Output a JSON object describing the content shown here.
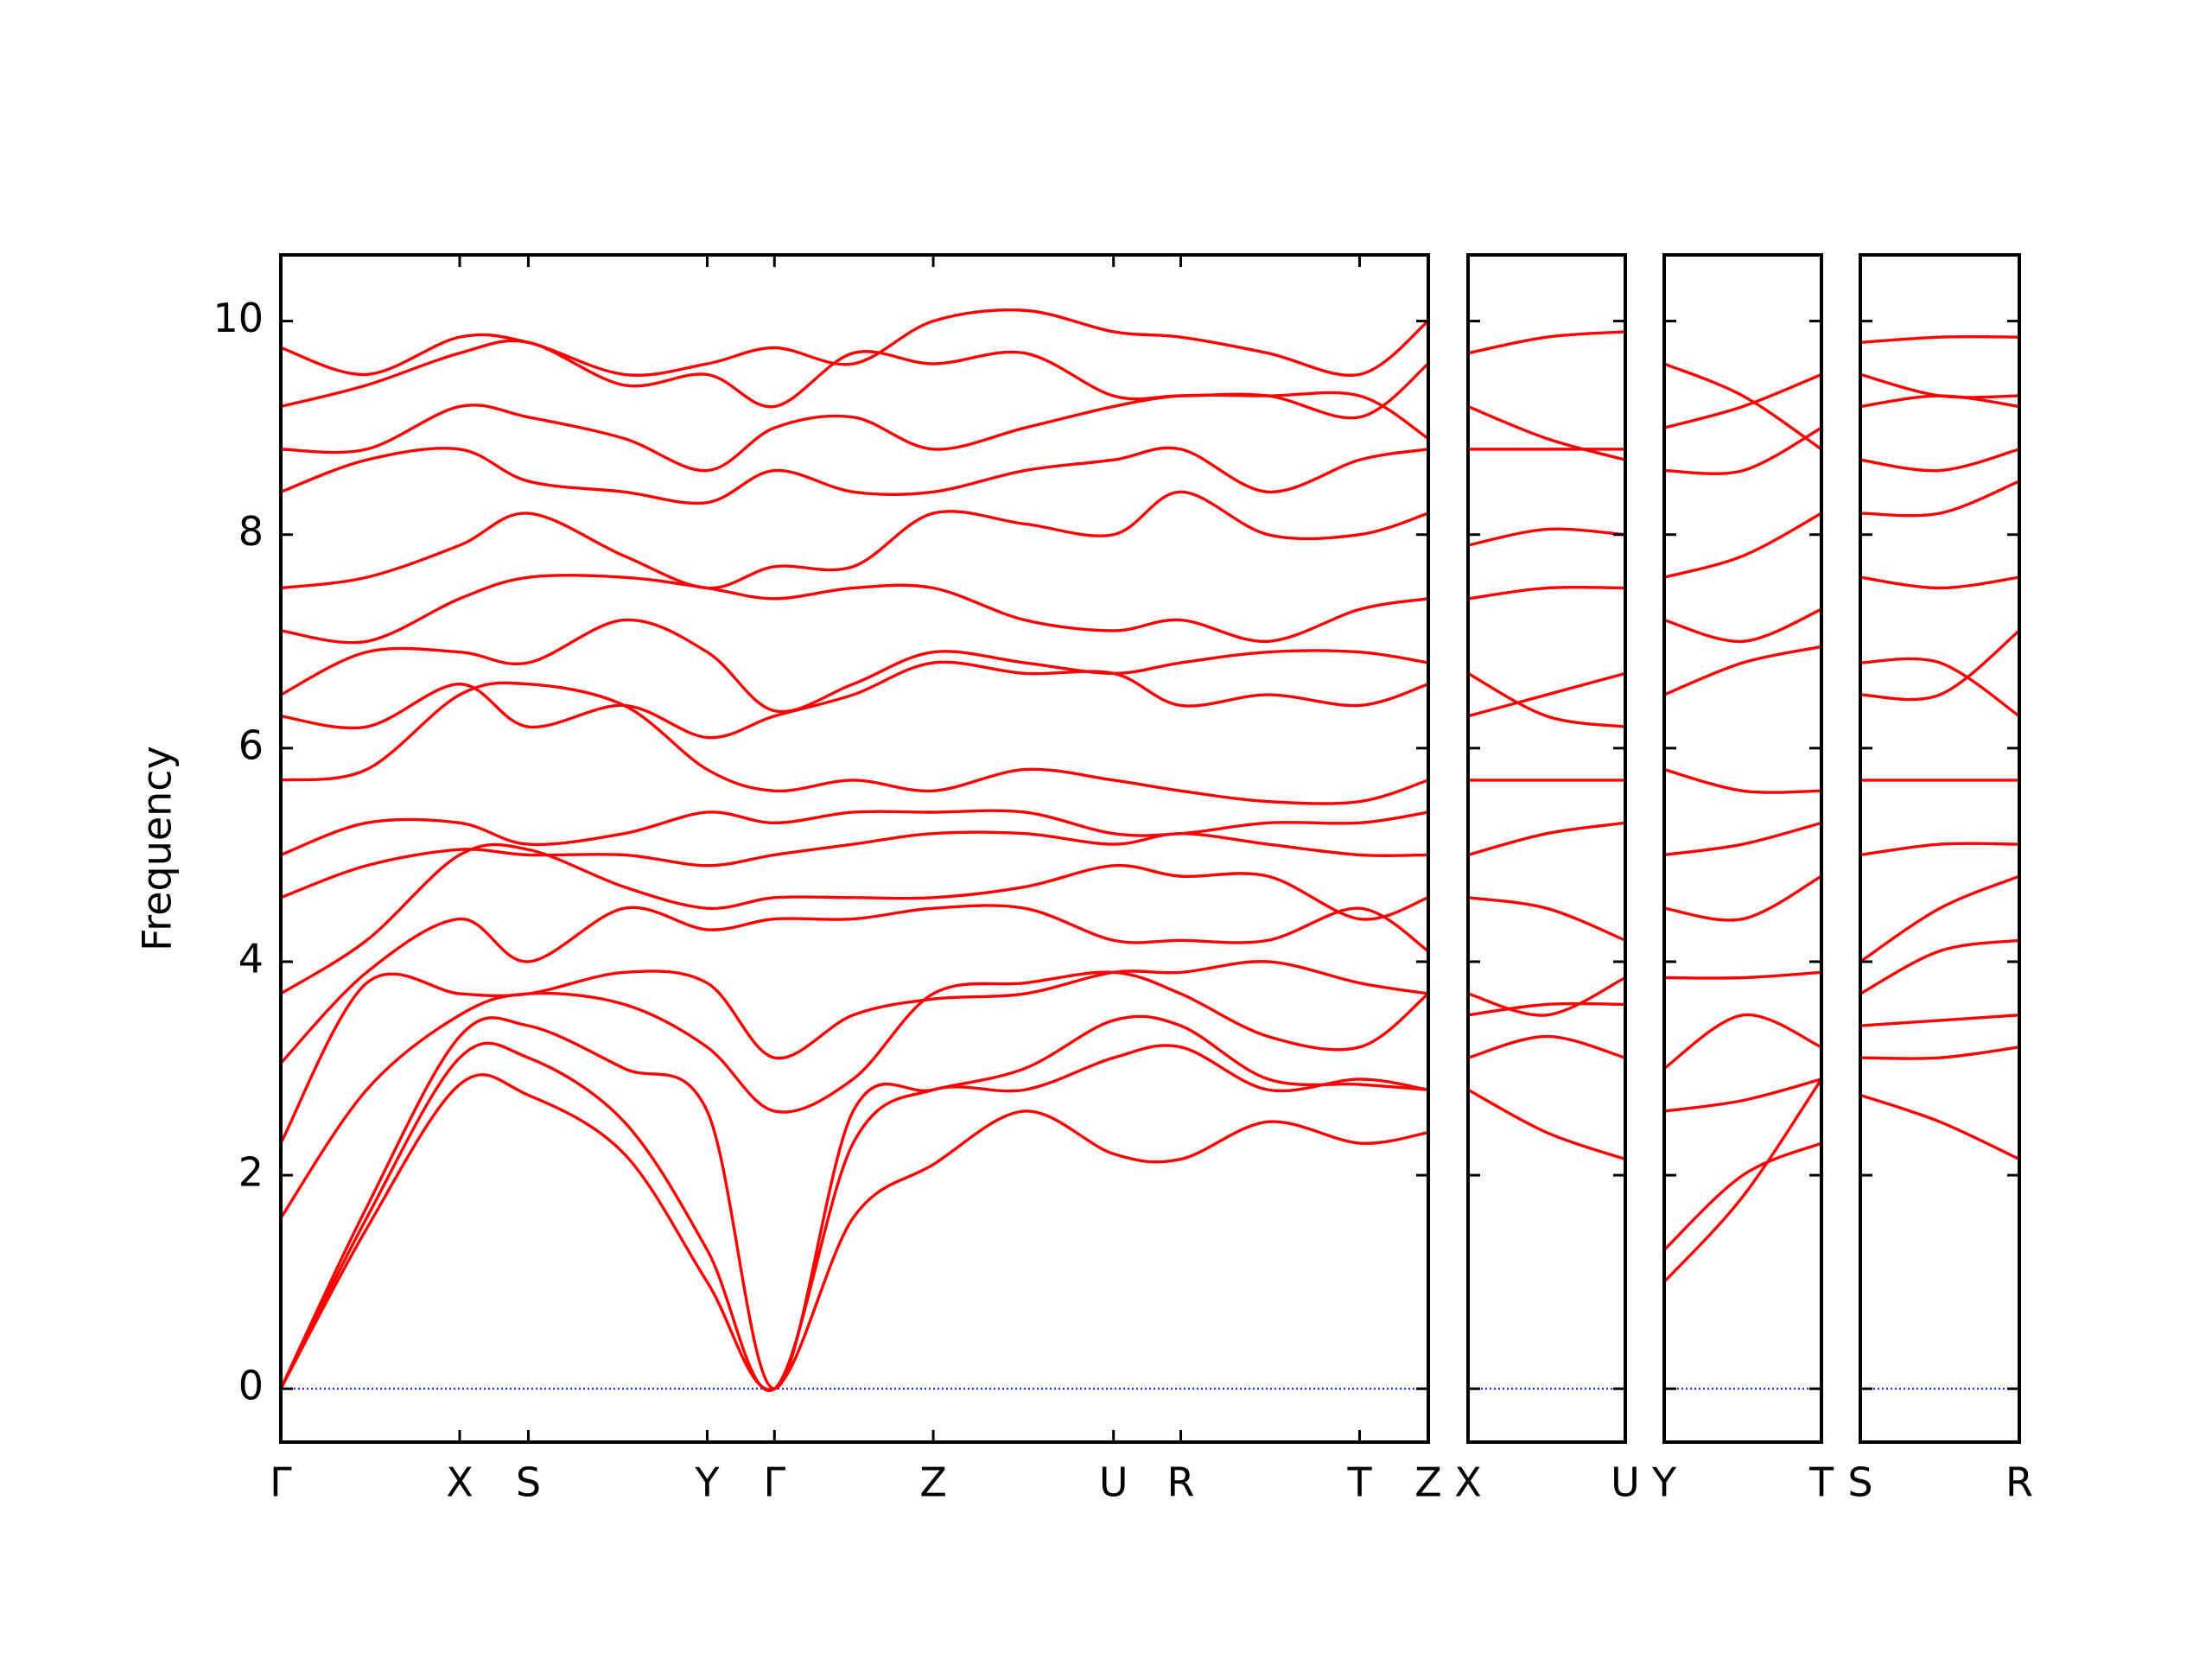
{
  "chart_data": [
    {
      "type": "line",
      "y_label": "Frequency",
      "color": "#ff0000",
      "zero_line": {
        "value": 0,
        "color": "#0000ff"
      },
      "xlim": [
        0,
        8.02
      ],
      "ylim": [
        -0.5,
        10.62
      ],
      "yticks": [
        0,
        2,
        4,
        6,
        8,
        10
      ],
      "xticks": [
        {
          "value": 0,
          "label": "Γ"
        },
        {
          "value": 1.25,
          "label": "X"
        },
        {
          "value": 1.73,
          "label": "S"
        },
        {
          "value": 2.98,
          "label": "Y"
        },
        {
          "value": 3.45,
          "label": "Γ"
        },
        {
          "value": 4.56,
          "label": "Z"
        },
        {
          "value": 5.82,
          "label": "U"
        },
        {
          "value": 6.29,
          "label": "R"
        },
        {
          "value": 7.54,
          "label": "T"
        },
        {
          "value": 8.02,
          "label": "Z"
        }
      ],
      "x": [
        0,
        0.6,
        1.25,
        1.73,
        2.4,
        2.98,
        3.45,
        4.0,
        4.56,
        5.2,
        5.82,
        6.29,
        6.9,
        7.54,
        8.02
      ],
      "series": [
        {
          "values": [
            0,
            1.5,
            2.85,
            2.75,
            2.2,
            1.0,
            0,
            1.6,
            2.1,
            2.6,
            2.2,
            2.15,
            2.5,
            2.3,
            2.4
          ]
        },
        {
          "values": [
            0,
            1.6,
            3.1,
            3.1,
            2.5,
            1.3,
            0,
            2.3,
            2.8,
            2.8,
            3.1,
            3.2,
            2.8,
            2.9,
            2.8
          ]
        },
        {
          "values": [
            0,
            1.7,
            3.3,
            3.4,
            3.0,
            2.6,
            0,
            2.6,
            2.8,
            3.0,
            3.45,
            3.4,
            2.9,
            2.85,
            2.8
          ]
        },
        {
          "values": [
            1.6,
            2.8,
            3.5,
            3.7,
            3.6,
            3.2,
            2.6,
            2.9,
            3.7,
            3.8,
            3.9,
            3.7,
            3.3,
            3.2,
            3.7
          ]
        },
        {
          "values": [
            2.3,
            3.8,
            3.7,
            3.7,
            3.9,
            3.8,
            3.1,
            3.5,
            3.65,
            3.7,
            3.9,
            3.9,
            4.0,
            3.8,
            3.7
          ]
        },
        {
          "values": [
            3.05,
            3.9,
            4.4,
            4.0,
            4.5,
            4.3,
            4.4,
            4.4,
            4.5,
            4.5,
            4.2,
            4.2,
            4.2,
            4.5,
            4.1
          ]
        },
        {
          "values": [
            3.7,
            4.2,
            5.0,
            5.05,
            4.7,
            4.5,
            4.6,
            4.6,
            4.6,
            4.7,
            4.9,
            4.8,
            4.8,
            4.4,
            4.6
          ]
        },
        {
          "values": [
            4.6,
            4.9,
            5.05,
            5.0,
            5.0,
            4.9,
            5.0,
            5.1,
            5.2,
            5.2,
            5.1,
            5.2,
            5.1,
            5.0,
            5.0
          ]
        },
        {
          "values": [
            5.0,
            5.3,
            5.3,
            5.1,
            5.2,
            5.4,
            5.3,
            5.4,
            5.4,
            5.4,
            5.2,
            5.2,
            5.3,
            5.3,
            5.4
          ]
        },
        {
          "values": [
            5.7,
            5.8,
            6.5,
            6.6,
            6.4,
            5.8,
            5.6,
            5.7,
            5.6,
            5.8,
            5.7,
            5.6,
            5.5,
            5.5,
            5.7
          ]
        },
        {
          "values": [
            6.3,
            6.2,
            6.6,
            6.2,
            6.4,
            6.1,
            6.3,
            6.5,
            6.8,
            6.7,
            6.7,
            6.4,
            6.5,
            6.4,
            6.6
          ]
        },
        {
          "values": [
            6.5,
            6.9,
            6.9,
            6.8,
            7.2,
            6.9,
            6.35,
            6.6,
            6.9,
            6.8,
            6.7,
            6.8,
            6.9,
            6.9,
            6.8
          ]
        },
        {
          "values": [
            7.1,
            7.0,
            7.4,
            7.6,
            7.6,
            7.5,
            7.4,
            7.5,
            7.5,
            7.2,
            7.1,
            7.2,
            7.0,
            7.3,
            7.4
          ]
        },
        {
          "values": [
            7.5,
            7.6,
            7.9,
            8.2,
            7.8,
            7.5,
            7.7,
            7.7,
            8.2,
            8.1,
            8.0,
            8.4,
            8.0,
            8.0,
            8.2
          ]
        },
        {
          "values": [
            8.4,
            8.7,
            8.8,
            8.5,
            8.4,
            8.3,
            8.6,
            8.4,
            8.4,
            8.6,
            8.7,
            8.8,
            8.4,
            8.7,
            8.8
          ]
        },
        {
          "values": [
            8.8,
            8.8,
            9.2,
            9.1,
            8.9,
            8.6,
            9.0,
            9.1,
            8.8,
            9.0,
            9.2,
            9.3,
            9.3,
            9.3,
            8.9
          ]
        },
        {
          "values": [
            9.2,
            9.4,
            9.7,
            9.8,
            9.4,
            9.5,
            9.2,
            9.7,
            9.6,
            9.7,
            9.3,
            9.3,
            9.3,
            9.1,
            9.6
          ]
        },
        {
          "values": [
            9.75,
            9.5,
            9.85,
            9.8,
            9.5,
            9.6,
            9.75,
            9.6,
            10.0,
            10.1,
            9.9,
            9.85,
            9.7,
            9.5,
            10.0
          ]
        }
      ]
    },
    {
      "type": "line",
      "color": "#ff0000",
      "zero_line": {
        "value": 0,
        "color": "#0000ff"
      },
      "xlim": [
        0,
        1.1
      ],
      "ylim": [
        -0.5,
        10.62
      ],
      "yticks": [
        0,
        2,
        4,
        6,
        8,
        10
      ],
      "xticks": [
        {
          "value": 0,
          "label": "X"
        },
        {
          "value": 1.1,
          "label": "U"
        }
      ],
      "x": [
        0,
        0.55,
        1.1
      ],
      "series": [
        {
          "values": [
            2.8,
            2.4,
            2.15
          ]
        },
        {
          "values": [
            3.1,
            3.3,
            3.1
          ]
        },
        {
          "values": [
            3.5,
            3.6,
            3.6
          ]
        },
        {
          "values": [
            3.7,
            3.5,
            3.85
          ]
        },
        {
          "values": [
            4.6,
            4.5,
            4.2
          ]
        },
        {
          "values": [
            5.0,
            5.2,
            5.3
          ]
        },
        {
          "values": [
            5.7,
            5.7,
            5.7
          ]
        },
        {
          "values": [
            6.3,
            6.5,
            6.7
          ]
        },
        {
          "values": [
            6.7,
            6.3,
            6.2
          ]
        },
        {
          "values": [
            7.4,
            7.5,
            7.5
          ]
        },
        {
          "values": [
            7.9,
            8.05,
            8.0
          ]
        },
        {
          "values": [
            8.8,
            8.8,
            8.8
          ]
        },
        {
          "values": [
            9.2,
            8.9,
            8.7
          ]
        },
        {
          "values": [
            9.7,
            9.85,
            9.9
          ]
        }
      ]
    },
    {
      "type": "line",
      "color": "#ff0000",
      "zero_line": {
        "value": 0,
        "color": "#0000ff"
      },
      "xlim": [
        0,
        1.1
      ],
      "ylim": [
        -0.5,
        10.62
      ],
      "yticks": [
        0,
        2,
        4,
        6,
        8,
        10
      ],
      "xticks": [
        {
          "value": 0,
          "label": "Y"
        },
        {
          "value": 1.1,
          "label": "T"
        }
      ],
      "x": [
        0,
        0.55,
        1.1
      ],
      "series": [
        {
          "values": [
            1.0,
            1.8,
            2.9
          ]
        },
        {
          "values": [
            1.3,
            2.0,
            2.3
          ]
        },
        {
          "values": [
            2.6,
            2.7,
            2.9
          ]
        },
        {
          "values": [
            3.0,
            3.5,
            3.2
          ]
        },
        {
          "values": [
            3.85,
            3.85,
            3.9
          ]
        },
        {
          "values": [
            4.5,
            4.4,
            4.8
          ]
        },
        {
          "values": [
            5.0,
            5.1,
            5.3
          ]
        },
        {
          "values": [
            5.8,
            5.6,
            5.6
          ]
        },
        {
          "values": [
            6.5,
            6.8,
            6.95
          ]
        },
        {
          "values": [
            7.2,
            7.0,
            7.3
          ]
        },
        {
          "values": [
            7.6,
            7.8,
            8.2
          ]
        },
        {
          "values": [
            8.6,
            8.6,
            9.0
          ]
        },
        {
          "values": [
            9.0,
            9.2,
            9.5
          ]
        },
        {
          "values": [
            9.6,
            9.3,
            8.8
          ]
        }
      ]
    },
    {
      "type": "line",
      "color": "#ff0000",
      "zero_line": {
        "value": 0,
        "color": "#0000ff"
      },
      "xlim": [
        0,
        1.11
      ],
      "ylim": [
        -0.5,
        10.62
      ],
      "yticks": [
        0,
        2,
        4,
        6,
        8,
        10
      ],
      "xticks": [
        {
          "value": 0,
          "label": "S"
        },
        {
          "value": 1.11,
          "label": "R"
        }
      ],
      "x": [
        0,
        0.555,
        1.11
      ],
      "series": [
        {
          "values": [
            2.75,
            2.5,
            2.15
          ]
        },
        {
          "values": [
            3.1,
            3.1,
            3.2
          ]
        },
        {
          "values": [
            3.4,
            3.45,
            3.5
          ]
        },
        {
          "values": [
            3.7,
            4.1,
            4.2
          ]
        },
        {
          "values": [
            4.0,
            4.5,
            4.8
          ]
        },
        {
          "values": [
            5.0,
            5.1,
            5.1
          ]
        },
        {
          "values": [
            5.7,
            5.7,
            5.7
          ]
        },
        {
          "values": [
            6.5,
            6.5,
            7.1
          ]
        },
        {
          "values": [
            6.8,
            6.8,
            6.3
          ]
        },
        {
          "values": [
            7.6,
            7.5,
            7.6
          ]
        },
        {
          "values": [
            8.2,
            8.2,
            8.5
          ]
        },
        {
          "values": [
            8.7,
            8.6,
            8.8
          ]
        },
        {
          "values": [
            9.2,
            9.3,
            9.2
          ]
        },
        {
          "values": [
            9.5,
            9.3,
            9.3
          ]
        },
        {
          "values": [
            9.8,
            9.85,
            9.85
          ]
        }
      ]
    }
  ]
}
